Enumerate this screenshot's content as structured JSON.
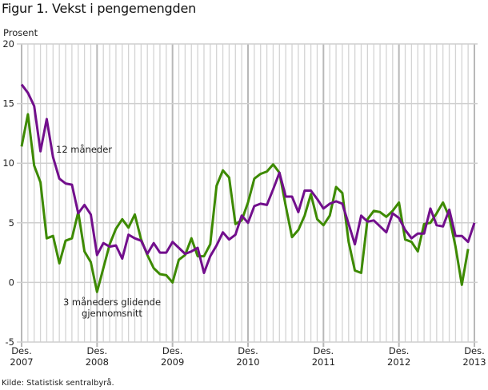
{
  "title": "Figur 1. Vekst i pengemengden",
  "source": "Kilde: Statistisk sentralbyrå.",
  "chart_data": {
    "type": "line",
    "title": "Figur 1. Vekst i pengemengden",
    "ylabel": "Prosent",
    "xlabel": "",
    "ylim": [
      -5,
      20
    ],
    "yticks": [
      -5,
      0,
      5,
      10,
      15,
      20
    ],
    "x_range_months": [
      0,
      72
    ],
    "x_ticks": [
      {
        "month": 0,
        "line1": "Des.",
        "line2": "2007"
      },
      {
        "month": 12,
        "line1": "Des.",
        "line2": "2008"
      },
      {
        "month": 24,
        "line1": "Des.",
        "line2": "2009"
      },
      {
        "month": 36,
        "line1": "Des.",
        "line2": "2010"
      },
      {
        "month": 48,
        "line1": "Des.",
        "line2": "2011"
      },
      {
        "month": 60,
        "line1": "Des.",
        "line2": "2012"
      },
      {
        "month": 72,
        "line1": "Des.",
        "line2": "2013"
      }
    ],
    "grid": true,
    "annotations": [
      {
        "text": "12 måneder",
        "series": 0
      },
      {
        "text": "3 måneders glidende",
        "series": 1
      },
      {
        "text": "gjennomsnitt",
        "series": 1
      }
    ],
    "series": [
      {
        "name": "12 måneder",
        "color": "#720f8c",
        "values": [
          16.6,
          15.9,
          14.8,
          11.0,
          13.7,
          10.5,
          8.7,
          8.3,
          8.2,
          5.8,
          6.5,
          5.7,
          2.3,
          3.3,
          3.0,
          3.1,
          2.0,
          4.0,
          3.7,
          3.5,
          2.4,
          3.3,
          2.5,
          2.5,
          3.4,
          2.9,
          2.4,
          2.6,
          2.9,
          0.8,
          2.2,
          3.1,
          4.2,
          3.6,
          4.0,
          5.6,
          5.0,
          6.4,
          6.6,
          6.5,
          7.8,
          9.2,
          7.2,
          7.2,
          5.9,
          7.7,
          7.7,
          7.0,
          6.2,
          6.6,
          6.8,
          6.6,
          4.9,
          3.2,
          5.6,
          5.1,
          5.2,
          4.7,
          4.2,
          5.8,
          5.4,
          4.4,
          3.7,
          4.1,
          4.1,
          6.2,
          4.8,
          4.7,
          6.1,
          3.9,
          3.9,
          3.4,
          5.0
        ]
      },
      {
        "name": "3 måneders glidende gjennomsnitt",
        "color": "#3d8a00",
        "values": [
          11.4,
          14.1,
          9.8,
          8.4,
          3.7,
          3.9,
          1.6,
          3.5,
          3.7,
          5.9,
          2.6,
          1.7,
          -0.8,
          1.2,
          3.2,
          4.5,
          5.3,
          4.6,
          5.7,
          3.6,
          2.3,
          1.2,
          0.7,
          0.6,
          0.0,
          1.9,
          2.3,
          3.7,
          2.2,
          2.2,
          3.2,
          8.1,
          9.4,
          8.8,
          4.9,
          5.2,
          6.7,
          8.7,
          9.1,
          9.3,
          9.9,
          9.2,
          6.4,
          3.8,
          4.4,
          5.6,
          7.4,
          5.3,
          4.8,
          5.6,
          8.0,
          7.5,
          3.4,
          1.0,
          0.8,
          5.3,
          6.0,
          5.9,
          5.5,
          6.0,
          6.7,
          3.6,
          3.4,
          2.6,
          4.9,
          5.0,
          5.8,
          6.7,
          5.5,
          3.0,
          -0.2,
          2.8
        ]
      }
    ]
  }
}
